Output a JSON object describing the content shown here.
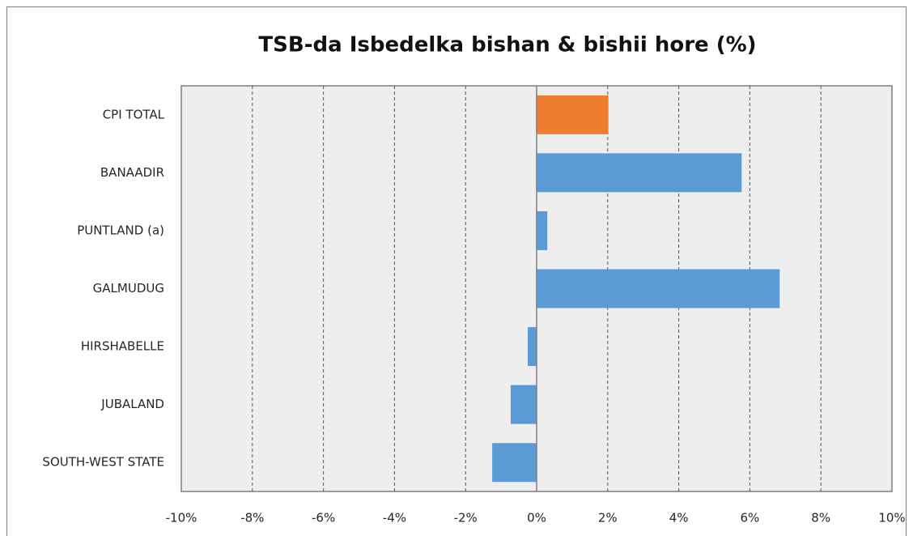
{
  "chart_data": {
    "type": "hbar",
    "title": "TSB-da Isbedelka bishan & bishii hore (%)",
    "categories": [
      "CPI TOTAL",
      "BANAADIR",
      "PUNTLAND  (a)",
      "GALMUDUG",
      "HIRSHABELLE",
      "JUBALAND",
      "SOUTH-WEST  STATE"
    ],
    "values": [
      2.02,
      5.77,
      0.3,
      6.84,
      -0.25,
      -0.73,
      -1.25
    ],
    "colors": [
      "#ed7d31",
      "#5b9bd5",
      "#5b9bd5",
      "#5b9bd5",
      "#5b9bd5",
      "#5b9bd5",
      "#5b9bd5"
    ],
    "xlim": [
      -10,
      10
    ],
    "xticks": [
      {
        "value": -10,
        "label": "-10%"
      },
      {
        "value": -8,
        "label": "-8%"
      },
      {
        "value": -6,
        "label": "-6%"
      },
      {
        "value": -4,
        "label": "-4%"
      },
      {
        "value": -2,
        "label": "-2%"
      },
      {
        "value": 0,
        "label": "0%"
      },
      {
        "value": 2,
        "label": "2%"
      },
      {
        "value": 4,
        "label": "4%"
      },
      {
        "value": 6,
        "label": "6%"
      },
      {
        "value": 8,
        "label": "8%"
      },
      {
        "value": 10,
        "label": "10%"
      }
    ],
    "grid": true
  }
}
